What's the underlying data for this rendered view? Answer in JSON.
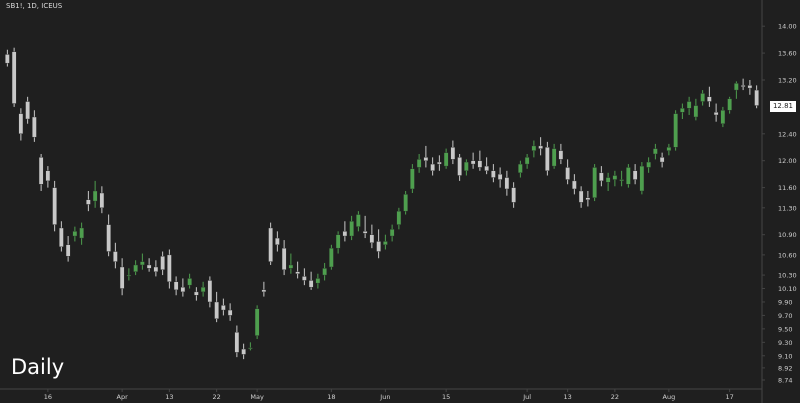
{
  "header": {
    "symbol_title": "SB1!, 1D, ICEUS"
  },
  "overlay": {
    "period_label": "Daily"
  },
  "last_price": "12.81",
  "colors": {
    "background": "#1f1f1f",
    "up": "#4e9f4e",
    "down": "#c8c8c8",
    "axis_text": "#d0d0d0",
    "axis_line": "#444444"
  },
  "chart_data": {
    "type": "candlestick",
    "ylim": [
      8.74,
      14.3
    ],
    "y_ticks": [
      "14.00",
      "13.60",
      "13.20",
      "12.81",
      "12.40",
      "12.00",
      "11.60",
      "11.30",
      "10.90",
      "10.60",
      "10.30",
      "10.10",
      "9.90",
      "9.70",
      "9.50",
      "9.30",
      "9.10",
      "8.92",
      "8.74"
    ],
    "x_ticks": [
      {
        "label": "16",
        "index": 6
      },
      {
        "label": "Apr",
        "index": 17
      },
      {
        "label": "13",
        "index": 24
      },
      {
        "label": "22",
        "index": 31
      },
      {
        "label": "May",
        "index": 37
      },
      {
        "label": "18",
        "index": 48
      },
      {
        "label": "Jun",
        "index": 56
      },
      {
        "label": "15",
        "index": 65
      },
      {
        "label": "Jul",
        "index": 77
      },
      {
        "label": "13",
        "index": 83
      },
      {
        "label": "22",
        "index": 90
      },
      {
        "label": "Aug",
        "index": 98
      },
      {
        "label": "17",
        "index": 107
      }
    ],
    "candles": [
      [
        13.58,
        13.65,
        13.4,
        13.45
      ],
      [
        13.62,
        13.68,
        12.8,
        12.85
      ],
      [
        12.7,
        12.78,
        12.3,
        12.4
      ],
      [
        12.88,
        12.95,
        12.55,
        12.62
      ],
      [
        12.65,
        12.75,
        12.28,
        12.35
      ],
      [
        12.05,
        12.1,
        11.55,
        11.65
      ],
      [
        11.85,
        11.92,
        11.6,
        11.7
      ],
      [
        11.6,
        11.7,
        10.95,
        11.05
      ],
      [
        11.0,
        11.1,
        10.65,
        10.72
      ],
      [
        10.75,
        10.88,
        10.5,
        10.58
      ],
      [
        10.88,
        11.02,
        10.8,
        10.95
      ],
      [
        10.85,
        11.08,
        10.75,
        11.0
      ],
      [
        11.42,
        11.55,
        11.25,
        11.35
      ],
      [
        11.4,
        11.7,
        11.3,
        11.55
      ],
      [
        11.52,
        11.62,
        11.22,
        11.3
      ],
      [
        11.05,
        11.2,
        10.58,
        10.65
      ],
      [
        10.65,
        10.78,
        10.4,
        10.5
      ],
      [
        10.42,
        10.55,
        10.0,
        10.1
      ],
      [
        10.3,
        10.4,
        10.22,
        10.3
      ],
      [
        10.35,
        10.52,
        10.3,
        10.45
      ],
      [
        10.45,
        10.62,
        10.38,
        10.5
      ],
      [
        10.45,
        10.55,
        10.35,
        10.4
      ],
      [
        10.42,
        10.52,
        10.28,
        10.35
      ],
      [
        10.58,
        10.65,
        10.3,
        10.38
      ],
      [
        10.6,
        10.68,
        10.1,
        10.2
      ],
      [
        10.2,
        10.28,
        10.0,
        10.08
      ],
      [
        10.12,
        10.25,
        9.98,
        10.05
      ],
      [
        10.15,
        10.32,
        10.1,
        10.25
      ],
      [
        10.05,
        10.12,
        9.92,
        10.0
      ],
      [
        10.05,
        10.2,
        9.98,
        10.12
      ],
      [
        10.22,
        10.28,
        9.82,
        9.9
      ],
      [
        9.9,
        10.05,
        9.6,
        9.65
      ],
      [
        9.85,
        9.95,
        9.7,
        9.78
      ],
      [
        9.78,
        9.88,
        9.62,
        9.7
      ],
      [
        9.45,
        9.55,
        9.08,
        9.15
      ],
      [
        9.2,
        9.28,
        9.05,
        9.12
      ],
      [
        9.22,
        9.3,
        9.18,
        9.22
      ],
      [
        9.4,
        9.85,
        9.35,
        9.8
      ],
      [
        10.08,
        10.2,
        9.98,
        10.05
      ],
      [
        11.0,
        11.08,
        10.45,
        10.5
      ],
      [
        10.85,
        10.95,
        10.65,
        10.75
      ],
      [
        10.7,
        10.82,
        10.3,
        10.38
      ],
      [
        10.4,
        10.62,
        10.32,
        10.45
      ],
      [
        10.35,
        10.5,
        10.25,
        10.32
      ],
      [
        10.28,
        10.4,
        10.15,
        10.22
      ],
      [
        10.22,
        10.35,
        10.08,
        10.12
      ],
      [
        10.18,
        10.32,
        10.1,
        10.25
      ],
      [
        10.3,
        10.48,
        10.22,
        10.4
      ],
      [
        10.42,
        10.75,
        10.38,
        10.7
      ],
      [
        10.7,
        10.95,
        10.62,
        10.9
      ],
      [
        10.95,
        11.1,
        10.8,
        10.88
      ],
      [
        10.88,
        11.18,
        10.82,
        11.1
      ],
      [
        11.02,
        11.25,
        10.95,
        11.2
      ],
      [
        10.95,
        11.18,
        10.85,
        10.92
      ],
      [
        10.9,
        11.05,
        10.7,
        10.78
      ],
      [
        10.8,
        10.98,
        10.55,
        10.65
      ],
      [
        10.75,
        10.9,
        10.68,
        10.8
      ],
      [
        10.88,
        11.05,
        10.8,
        10.98
      ],
      [
        11.05,
        11.3,
        10.98,
        11.25
      ],
      [
        11.25,
        11.55,
        11.2,
        11.5
      ],
      [
        11.58,
        11.95,
        11.52,
        11.88
      ],
      [
        11.9,
        12.1,
        11.82,
        12.02
      ],
      [
        12.05,
        12.22,
        11.9,
        12.0
      ],
      [
        11.95,
        12.05,
        11.78,
        11.85
      ],
      [
        11.98,
        12.08,
        11.85,
        11.95
      ],
      [
        11.92,
        12.18,
        11.88,
        12.12
      ],
      [
        12.2,
        12.3,
        11.95,
        12.02
      ],
      [
        12.05,
        12.1,
        11.7,
        11.78
      ],
      [
        11.85,
        12.02,
        11.78,
        11.98
      ],
      [
        12.0,
        12.12,
        11.88,
        11.95
      ],
      [
        12.0,
        12.15,
        11.85,
        11.9
      ],
      [
        11.92,
        12.05,
        11.8,
        11.85
      ],
      [
        11.85,
        11.95,
        11.68,
        11.75
      ],
      [
        11.8,
        11.9,
        11.6,
        11.72
      ],
      [
        11.75,
        11.85,
        11.48,
        11.58
      ],
      [
        11.6,
        11.68,
        11.3,
        11.38
      ],
      [
        11.82,
        12.0,
        11.75,
        11.95
      ],
      [
        11.95,
        12.1,
        11.88,
        12.05
      ],
      [
        12.15,
        12.3,
        12.05,
        12.22
      ],
      [
        12.22,
        12.35,
        12.08,
        12.18
      ],
      [
        12.2,
        12.28,
        11.78,
        11.85
      ],
      [
        11.92,
        12.25,
        11.88,
        12.18
      ],
      [
        12.15,
        12.25,
        11.95,
        12.02
      ],
      [
        11.9,
        12.02,
        11.65,
        11.72
      ],
      [
        11.7,
        11.8,
        11.5,
        11.58
      ],
      [
        11.55,
        11.62,
        11.3,
        11.38
      ],
      [
        11.45,
        11.55,
        11.32,
        11.42
      ],
      [
        11.45,
        11.95,
        11.4,
        11.9
      ],
      [
        11.82,
        11.92,
        11.62,
        11.7
      ],
      [
        11.68,
        11.82,
        11.55,
        11.75
      ],
      [
        11.72,
        11.85,
        11.62,
        11.78
      ],
      [
        11.7,
        11.85,
        11.62,
        11.72
      ],
      [
        11.65,
        11.95,
        11.6,
        11.9
      ],
      [
        11.85,
        11.95,
        11.65,
        11.72
      ],
      [
        11.55,
        11.98,
        11.5,
        11.92
      ],
      [
        11.9,
        12.05,
        11.82,
        11.98
      ],
      [
        12.1,
        12.25,
        12.02,
        12.18
      ],
      [
        12.05,
        12.12,
        11.9,
        11.98
      ],
      [
        12.15,
        12.25,
        12.08,
        12.2
      ],
      [
        12.2,
        12.75,
        12.15,
        12.7
      ],
      [
        12.72,
        12.85,
        12.62,
        12.78
      ],
      [
        12.78,
        12.95,
        12.68,
        12.88
      ],
      [
        12.65,
        12.92,
        12.6,
        12.82
      ],
      [
        12.88,
        13.05,
        12.82,
        13.0
      ],
      [
        12.95,
        13.1,
        12.8,
        12.88
      ],
      [
        12.72,
        12.85,
        12.58,
        12.68
      ],
      [
        12.55,
        12.8,
        12.5,
        12.75
      ],
      [
        12.75,
        12.95,
        12.7,
        12.92
      ],
      [
        13.05,
        13.18,
        12.92,
        13.15
      ],
      [
        13.12,
        13.22,
        13.05,
        13.1
      ],
      [
        13.12,
        13.2,
        12.98,
        13.08
      ],
      [
        13.05,
        13.12,
        12.78,
        12.82
      ]
    ]
  }
}
